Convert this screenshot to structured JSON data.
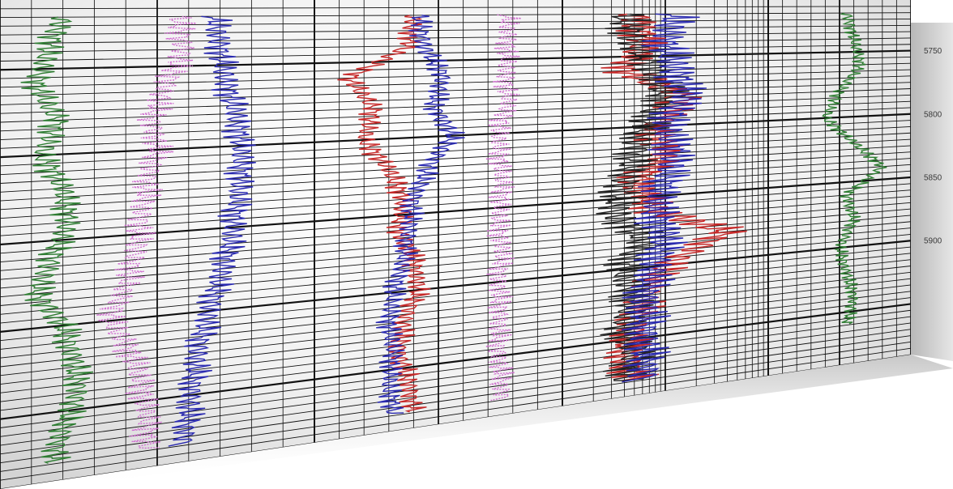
{
  "chart_data": {
    "type": "line",
    "title": "",
    "depth_axis": {
      "ticks": [
        5750,
        5800,
        5850,
        5900
      ]
    },
    "tracks": [
      {
        "id": "track1",
        "scale": "linear",
        "series": [
          {
            "color": "#2e7d32",
            "depth": [
              5720,
              5740,
              5760,
              5780,
              5800,
              5820,
              5840,
              5860,
              5880,
              5900,
              5920,
              5940,
              5960,
              5980
            ],
            "value": [
              0.6,
              0.45,
              0.35,
              0.55,
              0.4,
              0.6,
              0.65,
              0.5,
              0.35,
              0.6,
              0.7,
              0.75,
              0.6,
              0.5
            ]
          },
          {
            "color": "#d070d0",
            "dashed": true,
            "depth": [
              5720,
              5740,
              5760,
              5780,
              5800,
              5820,
              5840,
              5860,
              5880,
              5900,
              5920,
              5940,
              5960,
              5980
            ],
            "value": [
              1.7,
              1.75,
              1.6,
              1.45,
              1.5,
              1.4,
              1.35,
              1.3,
              1.2,
              1.05,
              1.25,
              1.35,
              1.4,
              1.4
            ]
          },
          {
            "color": "#2a2ab0",
            "depth": [
              5720,
              5740,
              5760,
              5780,
              5800,
              5820,
              5840,
              5860,
              5880,
              5900,
              5920,
              5940,
              5960,
              5980
            ],
            "value": [
              2.05,
              2.1,
              2.15,
              2.25,
              2.3,
              2.3,
              2.25,
              2.2,
              2.1,
              2.0,
              1.9,
              1.85,
              1.8,
              1.75
            ]
          }
        ]
      },
      {
        "id": "track2",
        "scale": "linear",
        "series": [
          {
            "color": "#c62828",
            "depth": [
              5720,
              5740,
              5760,
              5780,
              5800,
              5820,
              5840,
              5860,
              5880,
              5900,
              5920,
              5940,
              5960,
              5980
            ],
            "value": [
              2.0,
              1.9,
              0.7,
              1.2,
              1.0,
              1.5,
              1.8,
              1.7,
              2.0,
              2.1,
              1.8,
              1.7,
              1.9,
              2.0
            ]
          },
          {
            "color": "#2a2ab0",
            "depth": [
              5720,
              5740,
              5760,
              5780,
              5800,
              5820,
              5840,
              5860,
              5880,
              5900,
              5920,
              5940,
              5960,
              5980
            ],
            "value": [
              2.1,
              2.2,
              2.6,
              2.4,
              2.8,
              2.3,
              2.0,
              1.9,
              1.8,
              1.6,
              1.5,
              1.6,
              1.5,
              1.6
            ]
          },
          {
            "color": "#d070d0",
            "dashed": true,
            "depth": [
              5720,
              5740,
              5760,
              5780,
              5800,
              5820,
              5840,
              5860,
              5880,
              5900,
              5920,
              5940,
              5960,
              5980
            ],
            "value": [
              3.9,
              3.9,
              3.85,
              3.9,
              3.7,
              3.75,
              3.8,
              3.7,
              3.8,
              3.7,
              3.75,
              3.7,
              3.75,
              3.8
            ]
          }
        ]
      },
      {
        "id": "track3",
        "scale": "log",
        "series": [
          {
            "color": "#c62828",
            "depth": [
              5720,
              5740,
              5760,
              5780,
              5800,
              5820,
              5840,
              5860,
              5880,
              5900,
              5920,
              5940,
              5960,
              5980
            ],
            "value": [
              0.35,
              0.4,
              0.3,
              0.6,
              0.45,
              0.5,
              0.35,
              0.45,
              0.8,
              0.5,
              0.4,
              0.35,
              0.3,
              0.35
            ]
          },
          {
            "color": "#222222",
            "depth": [
              5720,
              5740,
              5760,
              5780,
              5800,
              5820,
              5840,
              5860,
              5880,
              5900,
              5920,
              5940,
              5960,
              5980
            ],
            "value": [
              0.3,
              0.35,
              0.45,
              0.5,
              0.4,
              0.35,
              0.3,
              0.25,
              0.4,
              0.3,
              0.35,
              0.3,
              0.35,
              0.3
            ]
          },
          {
            "color": "#2a2ab0",
            "depth": [
              5720,
              5740,
              5760,
              5780,
              5800,
              5820,
              5840,
              5860,
              5880,
              5900,
              5920,
              5940,
              5960,
              5980
            ],
            "value": [
              0.55,
              0.5,
              0.55,
              0.6,
              0.5,
              0.55,
              0.5,
              0.45,
              0.5,
              0.45,
              0.4,
              0.4,
              0.4,
              0.4
            ]
          }
        ]
      },
      {
        "id": "track4",
        "scale": "linear",
        "series": [
          {
            "color": "#2e7d32",
            "depth": [
              5720,
              5740,
              5760,
              5780,
              5800,
              5820,
              5840,
              5860,
              5880,
              5900,
              5920,
              5940,
              5960
            ],
            "value": [
              0.55,
              0.6,
              0.65,
              0.5,
              0.4,
              0.6,
              0.8,
              0.55,
              0.6,
              0.5,
              0.55,
              0.6,
              0.55
            ]
          }
        ]
      }
    ]
  }
}
